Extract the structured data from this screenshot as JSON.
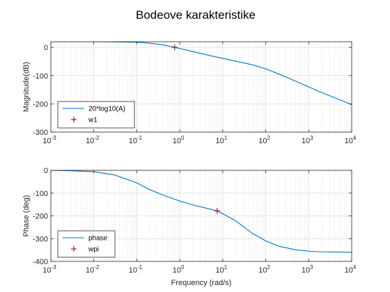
{
  "figure": {
    "title": "Bodeove karakteristike"
  },
  "chart_data": [
    {
      "type": "line",
      "panel": "magnitude",
      "xscale": "log",
      "xlim": [
        0.001,
        10000
      ],
      "ylim": [
        -300,
        20
      ],
      "xlabel": "",
      "ylabel": "Magnitude(dB)",
      "grid": true,
      "legend_position": "bottom-left",
      "xtick_base": "10",
      "xtick_exponents": [
        "-3",
        "-2",
        "-1",
        "0",
        "1",
        "2",
        "3",
        "4"
      ],
      "yticks": [
        0,
        -100,
        -200,
        -300
      ],
      "ytick_labels": [
        "0",
        "-100",
        "-200",
        "-300"
      ],
      "series": [
        {
          "name": "20*log10(A)",
          "color": "#0072BD",
          "style": "line",
          "x": [
            0.001,
            0.01,
            0.03,
            0.1,
            0.2,
            0.4,
            0.76,
            1,
            2,
            5,
            10,
            20,
            50,
            100,
            200,
            500,
            1000,
            2000,
            5000,
            10000
          ],
          "y": [
            20,
            20,
            19.5,
            18,
            15,
            9,
            0,
            -4,
            -15,
            -29,
            -39,
            -49,
            -62,
            -76,
            -94,
            -120,
            -140,
            -160,
            -184,
            -203
          ]
        },
        {
          "name": "w1",
          "color": "#A2142F",
          "style": "marker-plus",
          "x": [
            0.76
          ],
          "y": [
            0
          ]
        }
      ]
    },
    {
      "type": "line",
      "panel": "phase",
      "xscale": "log",
      "xlim": [
        0.001,
        10000
      ],
      "ylim": [
        -400,
        0
      ],
      "xlabel": "Frequency (rad/s)",
      "ylabel": "Phase (deg)",
      "grid": true,
      "legend_position": "bottom-left",
      "xtick_base": "10",
      "xtick_exponents": [
        "-3",
        "-2",
        "-1",
        "0",
        "1",
        "2",
        "3",
        "4"
      ],
      "yticks": [
        0,
        -100,
        -200,
        -300,
        -400
      ],
      "ytick_labels": [
        "0",
        "-100",
        "-200",
        "-300",
        "-400"
      ],
      "series": [
        {
          "name": "phase",
          "color": "#0072BD",
          "style": "line",
          "x": [
            0.001,
            0.003,
            0.01,
            0.03,
            0.1,
            0.2,
            0.5,
            1,
            2,
            5,
            7.4,
            10,
            20,
            50,
            100,
            200,
            500,
            1000,
            2000,
            5000,
            10000
          ],
          "y": [
            0,
            -2,
            -6,
            -20,
            -55,
            -85,
            -115,
            -135,
            -152,
            -170,
            -178,
            -190,
            -222,
            -278,
            -310,
            -333,
            -349,
            -355,
            -358,
            -359,
            -360
          ]
        },
        {
          "name": "wpi",
          "color": "#A2142F",
          "style": "marker-plus",
          "x": [
            7.4
          ],
          "y": [
            -178
          ]
        }
      ]
    }
  ]
}
